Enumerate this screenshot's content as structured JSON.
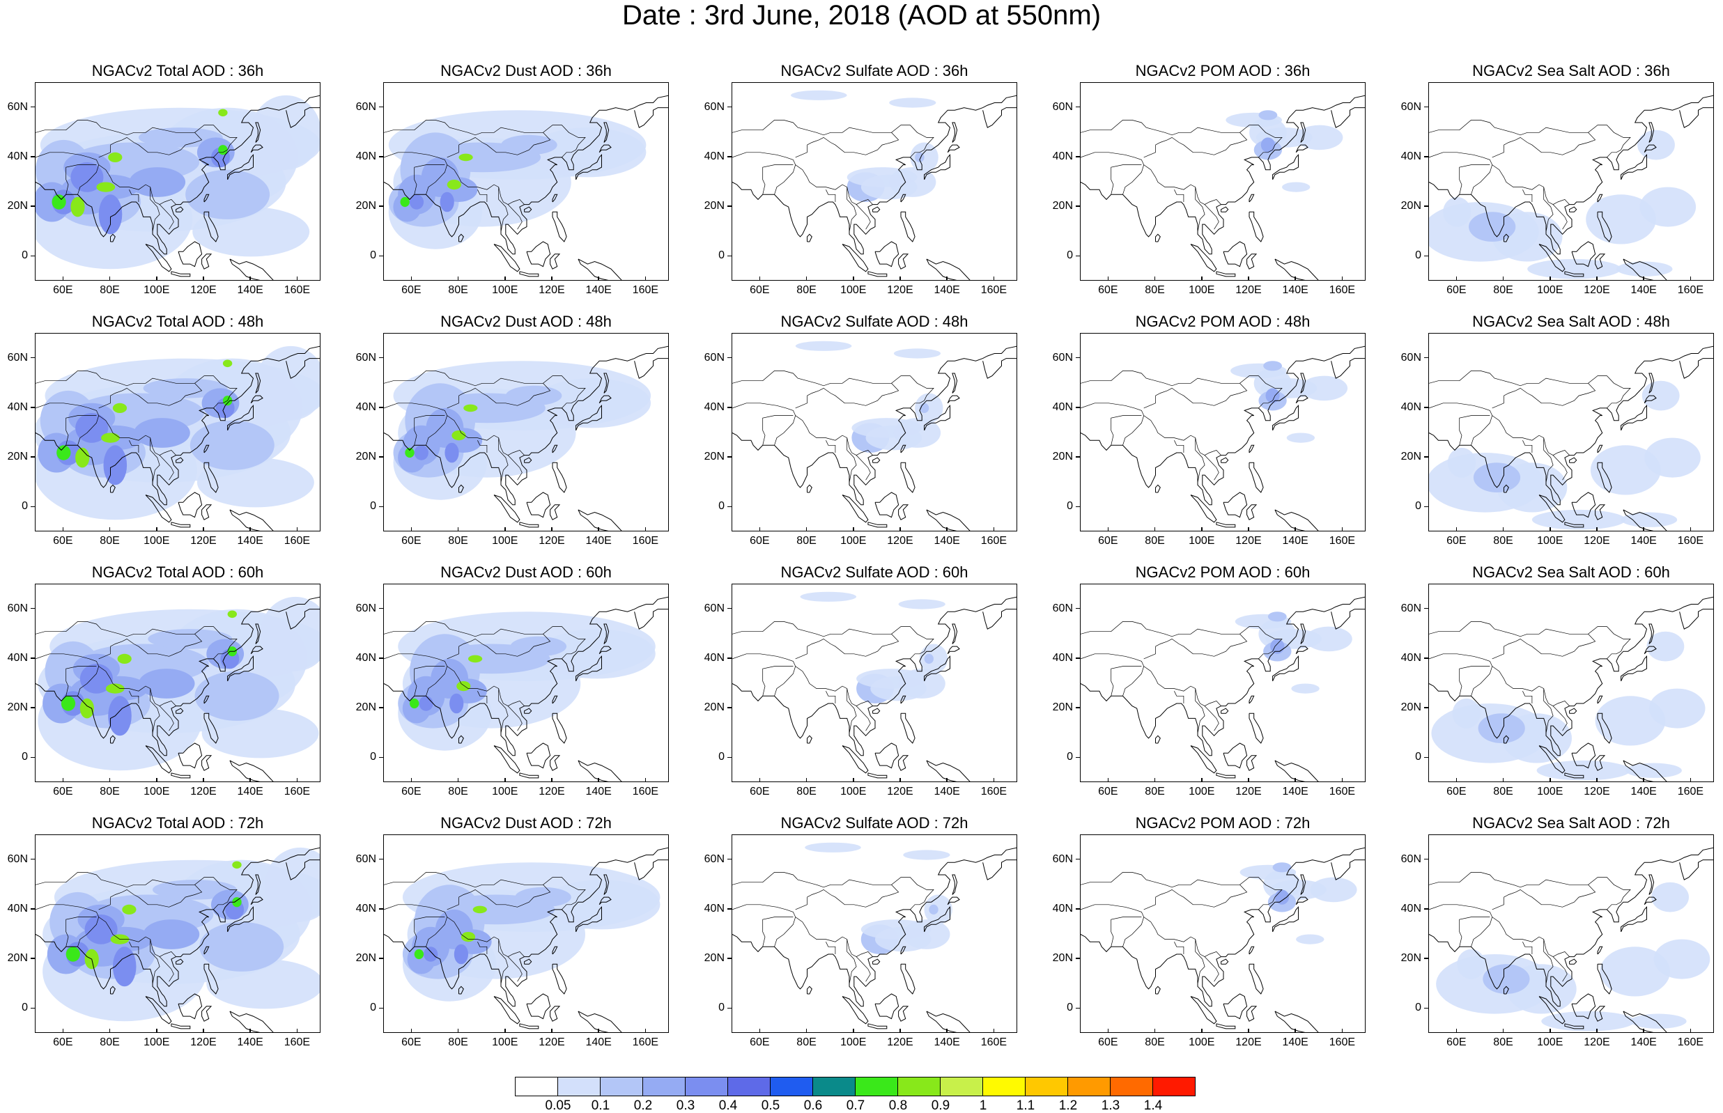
{
  "title": "Date : 3rd June, 2018 (AOD at 550nm)",
  "lat_labels": [
    "60N",
    "40N",
    "20N",
    "0"
  ],
  "lon_labels": [
    "60E",
    "80E",
    "100E",
    "120E",
    "140E",
    "160E"
  ],
  "colorbar": {
    "labels": [
      "0.05",
      "0.1",
      "0.2",
      "0.3",
      "0.4",
      "0.5",
      "0.6",
      "0.7",
      "0.8",
      "0.9",
      "1",
      "1.1",
      "1.2",
      "1.3",
      "1.4"
    ],
    "colors": [
      "#ffffff",
      "#d3e0fb",
      "#b3c6f7",
      "#95abf3",
      "#7b8ef0",
      "#5e6ae8",
      "#1f5cf0",
      "#0a8a8a",
      "#3ae81a",
      "#88e81a",
      "#c8f04a",
      "#fffa00",
      "#ffc800",
      "#ff9a00",
      "#ff6a00",
      "#ff1a00"
    ]
  },
  "rows": [
    {
      "hour": "36h",
      "titles": [
        "NGACv2 Total AOD : 36h",
        "NGACv2 Dust AOD : 36h",
        "NGACv2 Sulfate AOD : 36h",
        "NGACv2 POM AOD : 36h",
        "NGACv2 Sea Salt AOD : 36h"
      ]
    },
    {
      "hour": "48h",
      "titles": [
        "NGACv2 Total AOD : 48h",
        "NGACv2 Dust AOD : 48h",
        "NGACv2 Sulfate AOD : 48h",
        "NGACv2 POM AOD : 48h",
        "NGACv2 Sea Salt AOD : 48h"
      ]
    },
    {
      "hour": "60h",
      "titles": [
        "NGACv2 Total AOD : 60h",
        "NGACv2 Dust AOD : 60h",
        "NGACv2 Sulfate AOD : 60h",
        "NGACv2 POM AOD : 60h",
        "NGACv2 Sea Salt AOD : 60h"
      ]
    },
    {
      "hour": "72h",
      "titles": [
        "NGACv2 Total AOD : 72h",
        "NGACv2 Dust AOD : 72h",
        "NGACv2 Sulfate AOD : 72h",
        "NGACv2 POM AOD : 72h",
        "NGACv2 Sea Salt  AOD : 72h"
      ]
    }
  ],
  "map_extent": {
    "lon_min": 48,
    "lon_max": 170,
    "lat_min": -10,
    "lat_max": 70
  },
  "species": [
    "Total",
    "Dust",
    "Sulfate",
    "POM",
    "Sea Salt"
  ]
}
